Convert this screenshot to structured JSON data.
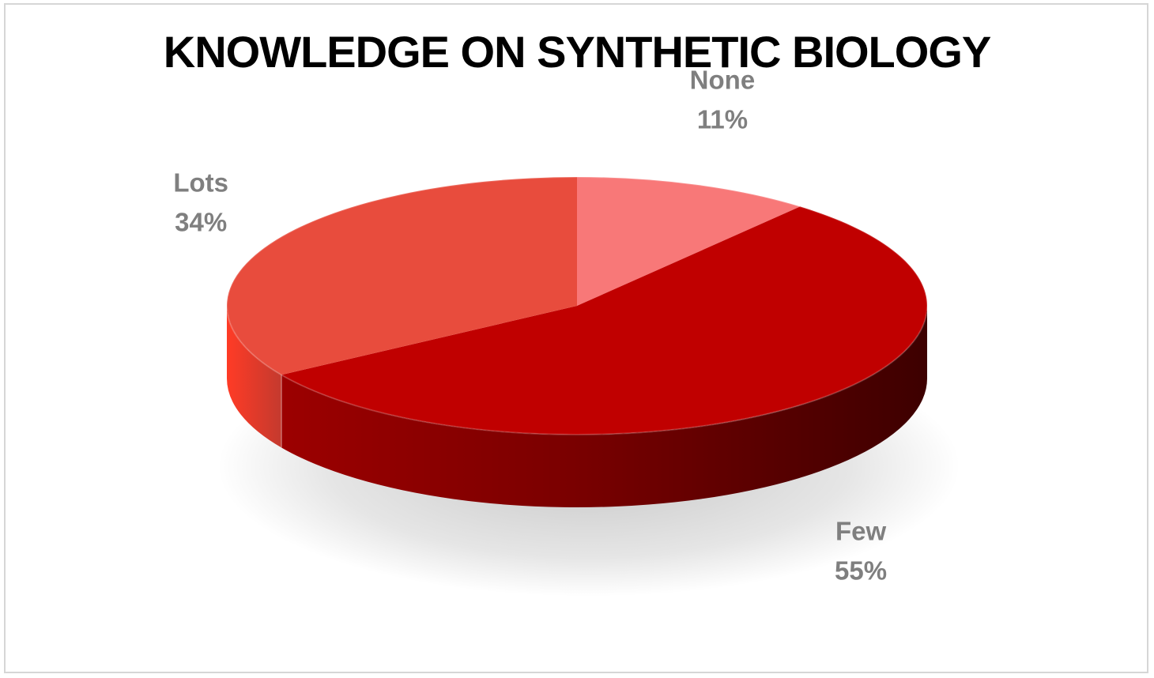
{
  "chart_data": {
    "type": "pie",
    "style": "3d",
    "title": "KNOWLEDGE ON SYNTHETIC BIOLOGY",
    "slices": [
      {
        "label": "None",
        "value": 11,
        "value_label": "11%",
        "color": "#f87878"
      },
      {
        "label": "Few",
        "value": 55,
        "value_label": "55%",
        "color": "#c00000"
      },
      {
        "label": "Lots",
        "value": 34,
        "value_label": "34%",
        "color": "#e84c3d"
      }
    ],
    "start_angle_deg": 0,
    "direction": "clockwise",
    "legend": "none",
    "labels": "category and percentage, outside slices"
  }
}
